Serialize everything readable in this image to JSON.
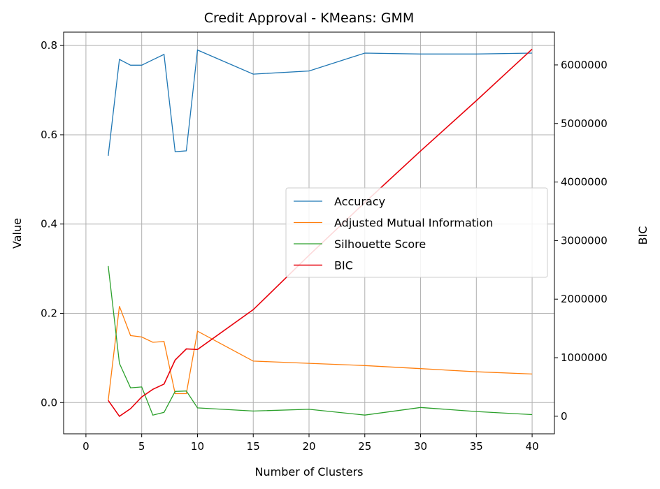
{
  "chart_data": {
    "type": "line",
    "title": "Credit Approval - KMeans: GMM",
    "xlabel": "Number of Clusters",
    "ylabel": "Value",
    "y2label": "BIC",
    "xlim": [
      -2,
      42
    ],
    "ylim": [
      -0.07,
      0.83
    ],
    "y2lim": [
      -300000,
      6560000
    ],
    "xticks": [
      0,
      5,
      10,
      15,
      20,
      25,
      30,
      35,
      40
    ],
    "xtick_labels": [
      "0",
      "5",
      "10",
      "15",
      "20",
      "25",
      "30",
      "35",
      "40"
    ],
    "yticks": [
      0.0,
      0.2,
      0.4,
      0.6,
      0.8
    ],
    "ytick_labels": [
      "0.0",
      "0.2",
      "0.4",
      "0.6",
      "0.8"
    ],
    "y2ticks": [
      0,
      1000000,
      2000000,
      3000000,
      4000000,
      5000000,
      6000000
    ],
    "y2tick_labels": [
      "0",
      "1000000",
      "2000000",
      "3000000",
      "4000000",
      "5000000",
      "6000000"
    ],
    "grid": true,
    "legend_position": "center-right",
    "x": [
      2,
      3,
      4,
      5,
      6,
      7,
      8,
      9,
      10,
      15,
      20,
      25,
      30,
      35,
      40
    ],
    "series": [
      {
        "name": "Accuracy",
        "axis": "left",
        "color": "#1f77b4",
        "values": [
          0.553,
          0.769,
          0.756,
          0.756,
          0.768,
          0.78,
          0.562,
          0.564,
          0.79,
          0.736,
          0.743,
          0.783,
          0.781,
          0.781,
          0.783
        ]
      },
      {
        "name": "Adjusted Mutual Information",
        "axis": "left",
        "color": "#ff7f0e",
        "values": [
          0.005,
          0.216,
          0.15,
          0.147,
          0.135,
          0.137,
          0.02,
          0.02,
          0.16,
          0.093,
          0.088,
          0.083,
          0.076,
          0.069,
          0.064
        ]
      },
      {
        "name": "Silhouette Score",
        "axis": "left",
        "color": "#2ca02c",
        "values": [
          0.306,
          0.088,
          0.033,
          0.035,
          -0.028,
          -0.022,
          0.025,
          0.026,
          -0.012,
          -0.019,
          -0.015,
          -0.028,
          -0.011,
          -0.02,
          -0.027
        ]
      },
      {
        "name": "BIC",
        "axis": "right",
        "color": "#e8000b",
        "values": [
          270000,
          0,
          130000,
          330000,
          460000,
          550000,
          960000,
          1150000,
          1140000,
          1820000,
          2750000,
          3650000,
          4530000,
          5390000,
          6270000
        ]
      }
    ]
  }
}
